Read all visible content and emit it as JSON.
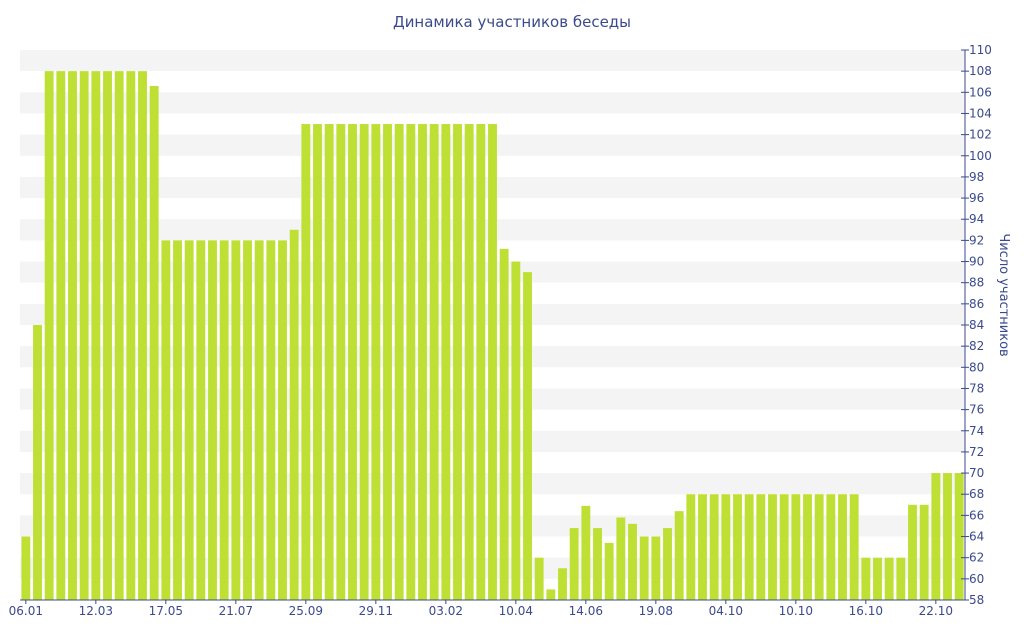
{
  "chart_data": {
    "type": "bar",
    "title": "Динамика участников беседы",
    "ylabel": "Число участников",
    "xlabel": "",
    "ylim": [
      58,
      110
    ],
    "yticks": [
      58,
      60,
      62,
      64,
      66,
      68,
      70,
      72,
      74,
      76,
      78,
      80,
      82,
      84,
      86,
      88,
      90,
      92,
      94,
      96,
      98,
      100,
      102,
      104,
      106,
      108,
      110
    ],
    "grid": "horizontal alternating bands",
    "bar_color": "#bedf34",
    "band_color": "#f4f4f4",
    "axis_color": "#3b4a8c",
    "xtick_labels": [
      {
        "label": "06.01",
        "index": 0
      },
      {
        "label": "12.03",
        "index": 6
      },
      {
        "label": "17.05",
        "index": 12
      },
      {
        "label": "21.07",
        "index": 18
      },
      {
        "label": "25.09",
        "index": 24
      },
      {
        "label": "29.11",
        "index": 30
      },
      {
        "label": "03.02",
        "index": 36
      },
      {
        "label": "10.04",
        "index": 42
      },
      {
        "label": "14.06",
        "index": 48
      },
      {
        "label": "19.08",
        "index": 54
      },
      {
        "label": "04.10",
        "index": 60
      },
      {
        "label": "10.10",
        "index": 66
      },
      {
        "label": "16.10",
        "index": 72
      },
      {
        "label": "22.10",
        "index": 78
      }
    ],
    "values": [
      64,
      84,
      108,
      108,
      108,
      108,
      108,
      108,
      108,
      108,
      108,
      106.6,
      92,
      92,
      92,
      92,
      92,
      92,
      92,
      92,
      92,
      92,
      92,
      93,
      103,
      103,
      103,
      103,
      103,
      103,
      103,
      103,
      103,
      103,
      103,
      103,
      103,
      103,
      103,
      103,
      103,
      91.2,
      90,
      89,
      62,
      59,
      61,
      64.8,
      66.9,
      64.8,
      63.4,
      65.8,
      65.2,
      64,
      64,
      64.8,
      66.4,
      68,
      68,
      68,
      68,
      68,
      68,
      68,
      68,
      68,
      68,
      68,
      68,
      68,
      68,
      68,
      62,
      62,
      62,
      62,
      67,
      67,
      70,
      70,
      70
    ]
  }
}
